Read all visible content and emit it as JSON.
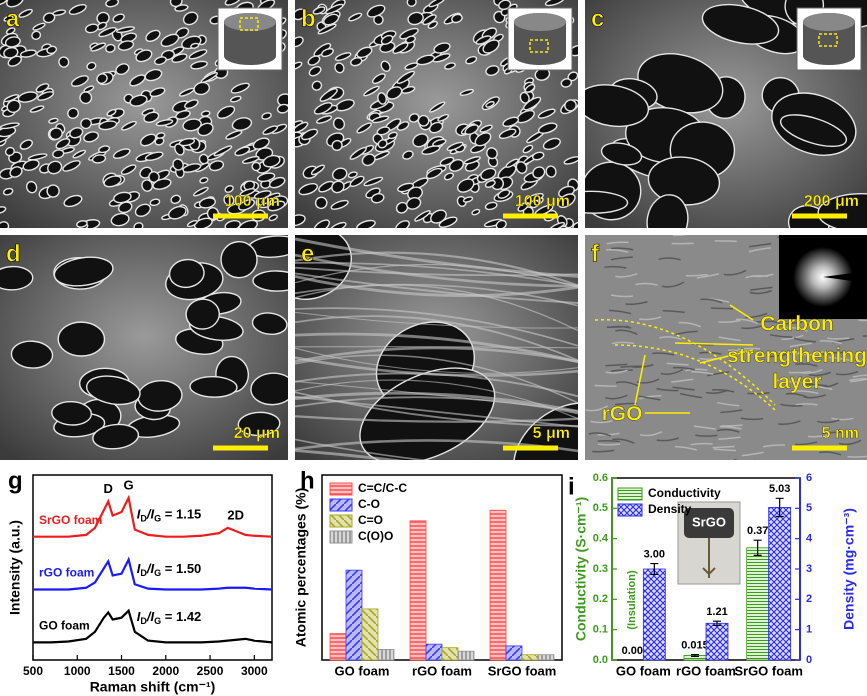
{
  "panels": [
    {
      "letter": "a",
      "scale_bar": "100 μm"
    },
    {
      "letter": "b",
      "scale_bar": "100 μm"
    },
    {
      "letter": "c",
      "scale_bar": "200 μm"
    },
    {
      "letter": "d",
      "scale_bar": "20 μm"
    },
    {
      "letter": "e",
      "scale_bar": "5 μm"
    },
    {
      "letter": "f",
      "scale_bar": "5 nm",
      "annotations": [
        "Carbon",
        "strengthening",
        "layer",
        "rGO"
      ]
    }
  ],
  "chart_data": [
    {
      "type": "line",
      "letter": "g",
      "xlabel": "Raman shift (cm⁻¹)",
      "ylabel": "Intensity (a.u.)",
      "x": [
        500,
        700,
        900,
        1100,
        1200,
        1300,
        1350,
        1400,
        1500,
        1580,
        1650,
        1800,
        2000,
        2200,
        2400,
        2600,
        2700,
        2800,
        2900,
        3000,
        3200
      ],
      "xlim": [
        500,
        3200
      ],
      "xticks": [
        500,
        1000,
        1500,
        2000,
        2500,
        3000
      ],
      "ylim": [
        0,
        10.5
      ],
      "peak_labels": [
        "D",
        "G",
        "2D"
      ],
      "series": [
        {
          "name": "GO foam",
          "color": "#000000",
          "values": [
            1.0,
            1.0,
            1.05,
            1.2,
            1.6,
            2.4,
            2.7,
            2.3,
            2.4,
            2.8,
            1.6,
            1.1,
            1.0,
            1.0,
            1.0,
            1.05,
            1.1,
            1.15,
            1.2,
            1.1,
            1.0
          ],
          "ratio_label": [
            "I",
            "D",
            "/I",
            "G",
            " = 1.42"
          ]
        },
        {
          "name": "rGO foam",
          "color": "#1a1aff",
          "values": [
            4.0,
            4.0,
            4.0,
            4.1,
            4.4,
            5.2,
            5.6,
            4.8,
            4.9,
            5.7,
            4.3,
            4.05,
            4.0,
            4.0,
            4.0,
            4.05,
            4.1,
            4.1,
            4.1,
            4.05,
            4.0
          ],
          "ratio_label": [
            "I",
            "D",
            "/I",
            "G",
            " = 1.50"
          ]
        },
        {
          "name": "SrGO foam",
          "color": "#ee1c1c",
          "values": [
            7.0,
            7.0,
            7.0,
            7.1,
            7.5,
            8.5,
            9.0,
            8.2,
            8.4,
            9.2,
            7.4,
            7.1,
            7.0,
            7.0,
            7.05,
            7.2,
            7.5,
            7.3,
            7.1,
            7.05,
            7.0
          ],
          "ratio_label": [
            "I",
            "D",
            "/I",
            "G",
            " = 1.15"
          ]
        }
      ]
    },
    {
      "type": "bar",
      "letter": "h",
      "ylabel": "Atomic percentages (%)",
      "categories": [
        "GO foam",
        "rGO foam",
        "SrGO foam"
      ],
      "ylim": [
        0,
        105
      ],
      "legend": "upper left",
      "series": [
        {
          "name": "C=C/C-C",
          "color": "#ff4d4d",
          "values": [
            15,
            79,
            85
          ]
        },
        {
          "name": "C-O",
          "color": "#3a3aff",
          "values": [
            51,
            9,
            8
          ]
        },
        {
          "name": "C=O",
          "color": "#a8a820",
          "values": [
            29,
            7,
            3
          ]
        },
        {
          "name": "C(O)O",
          "color": "#909090",
          "values": [
            6,
            5,
            3
          ]
        }
      ]
    },
    {
      "type": "bar2",
      "letter": "i",
      "ylabel": "Conductivity (S·cm⁻¹)",
      "y2label": "Density (mg·cm⁻³)",
      "categories": [
        "GO foam",
        "rGO foam",
        "SrGO foam"
      ],
      "ylim": [
        0,
        0.6
      ],
      "yticks": [
        {
          "value": 0,
          "label": "0.0"
        },
        0.1,
        0.2,
        0.3,
        0.4,
        0.5,
        0.6
      ],
      "y2lim": [
        0,
        6
      ],
      "y2ticks": [
        0,
        1,
        2,
        3,
        4,
        5,
        6
      ],
      "legend": "upper left",
      "annotation": "(Insulation)",
      "inset_label": "SrGO",
      "series": [
        {
          "name": "Conductivity",
          "color": "#3e9a1e",
          "values": [
            0,
            0.015,
            0.37
          ],
          "value_labels": [
            "0.00",
            "0.015",
            "0.37"
          ],
          "errors": [
            0,
            0.003,
            0.025
          ]
        },
        {
          "name": "Density",
          "color": "#2a2aee",
          "axis": "y2",
          "values": [
            3.0,
            1.21,
            5.03
          ],
          "value_labels": [
            "3.00",
            "1.21",
            "5.03"
          ],
          "errors": [
            0.18,
            0.07,
            0.3
          ]
        }
      ]
    }
  ]
}
